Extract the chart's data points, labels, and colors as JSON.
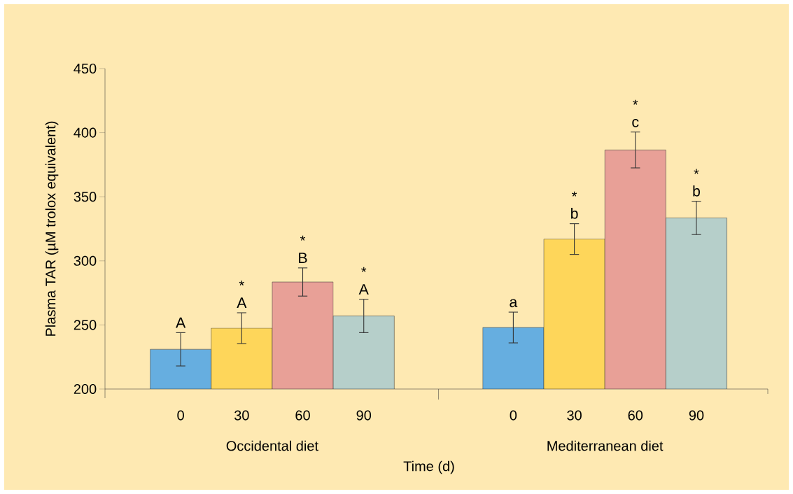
{
  "chart_data": {
    "type": "bar",
    "categories": [
      "0",
      "30",
      "60",
      "90",
      "0",
      "30",
      "60",
      "90"
    ],
    "values": [
      231,
      247.5,
      283.5,
      257,
      248,
      317,
      386.5,
      333.5
    ],
    "errors": [
      13,
      12,
      11,
      13,
      12,
      12,
      14,
      13
    ],
    "colors": [
      "#66aee0",
      "#fed65a",
      "#e8a097",
      "#b6cfca",
      "#66aee0",
      "#fed65a",
      "#e8a097",
      "#b6cfca"
    ],
    "ylim": [
      200,
      450
    ],
    "yticks": [
      200,
      250,
      300,
      350,
      400,
      450
    ],
    "xlabel": "Time (d)",
    "ylabel": "Plasma TAR (µM trolox equivalent)",
    "value_labels": [
      "A",
      "A",
      "B",
      "A",
      "a",
      "b",
      "c",
      "b"
    ],
    "annotations": [
      "*",
      "*",
      "*",
      "*",
      "*",
      "*",
      "Occidental diet",
      "Mediterranean diet"
    ]
  }
}
